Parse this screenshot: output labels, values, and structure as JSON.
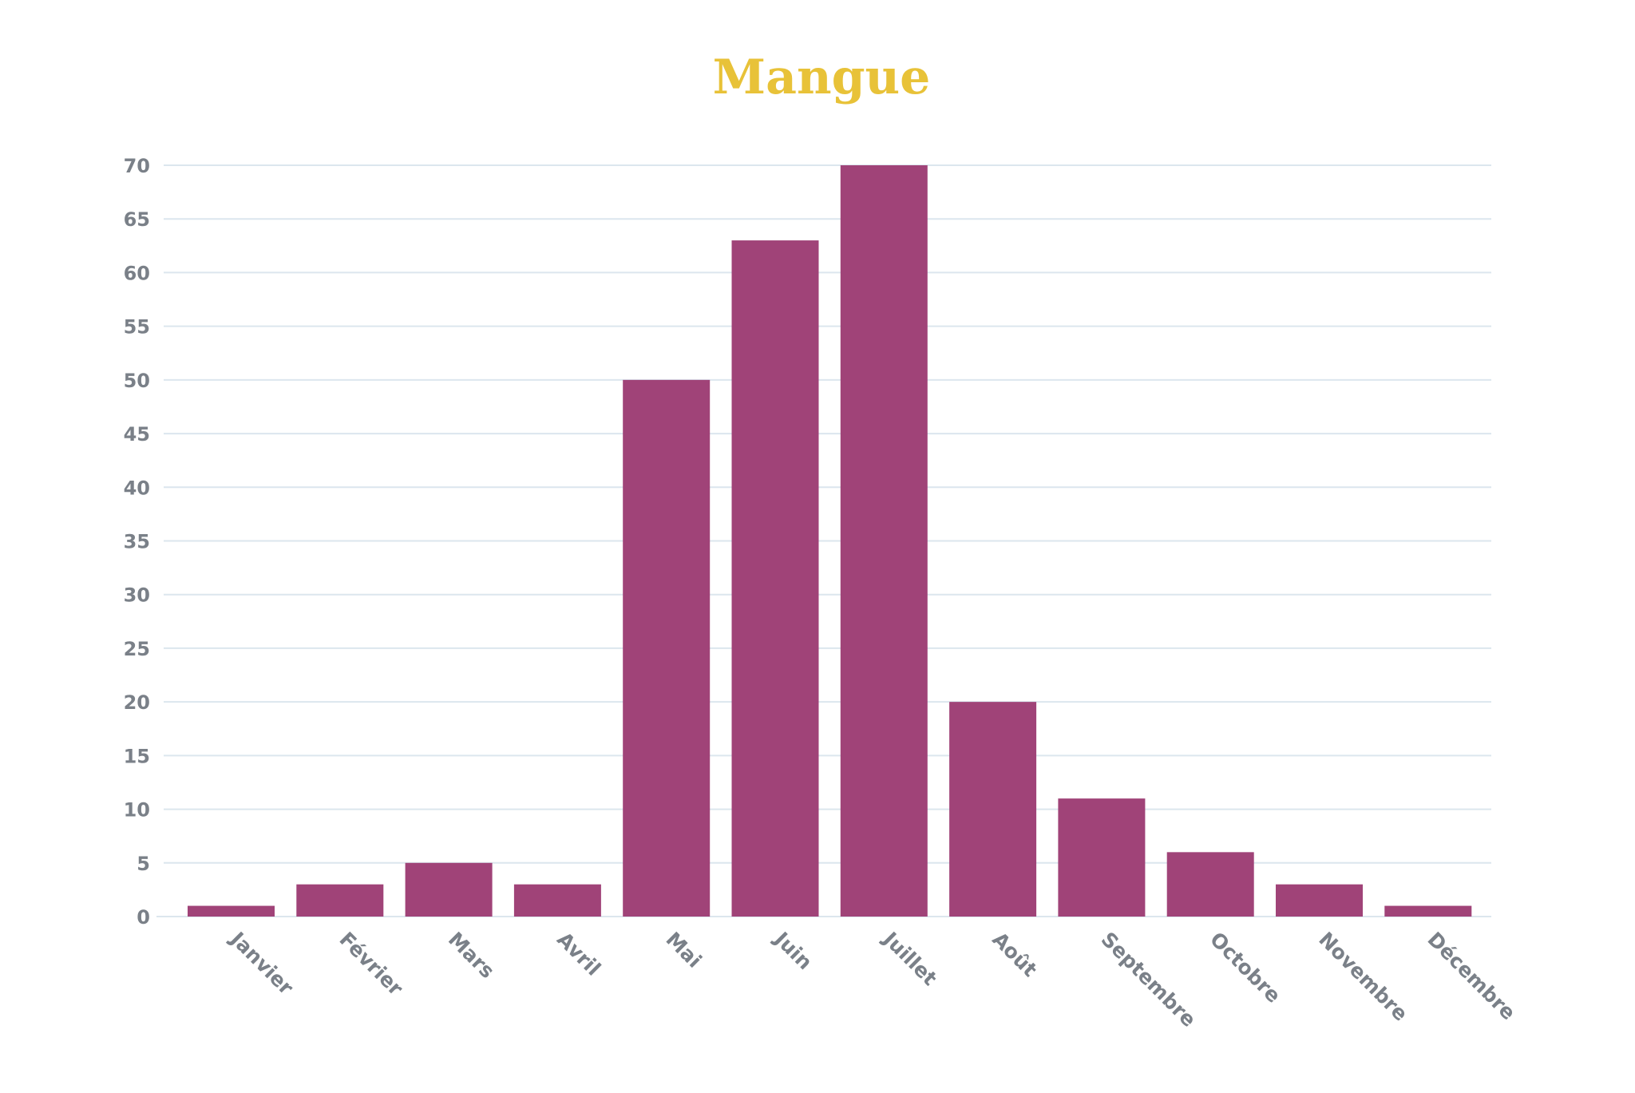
{
  "chart_data": {
    "type": "bar",
    "title": "Mangue",
    "xlabel": "",
    "ylabel": "",
    "categories": [
      "Janvier",
      "Février",
      "Mars",
      "Avril",
      "Mai",
      "Juin",
      "Juillet",
      "Août",
      "Septembre",
      "Octobre",
      "Novembre",
      "Décembre"
    ],
    "values": [
      1,
      3,
      5,
      3,
      50,
      63,
      70,
      20,
      11,
      6,
      3,
      1
    ],
    "ylim": [
      0,
      70
    ],
    "yticks": [
      0,
      5,
      10,
      15,
      20,
      25,
      30,
      35,
      40,
      45,
      50,
      55,
      60,
      65,
      70
    ],
    "grid": true,
    "legend": "none",
    "colors": {
      "bar": "#a04378",
      "title": "#e8c238",
      "grid": "#dce6ee",
      "tick_text": "#7a8088"
    }
  }
}
